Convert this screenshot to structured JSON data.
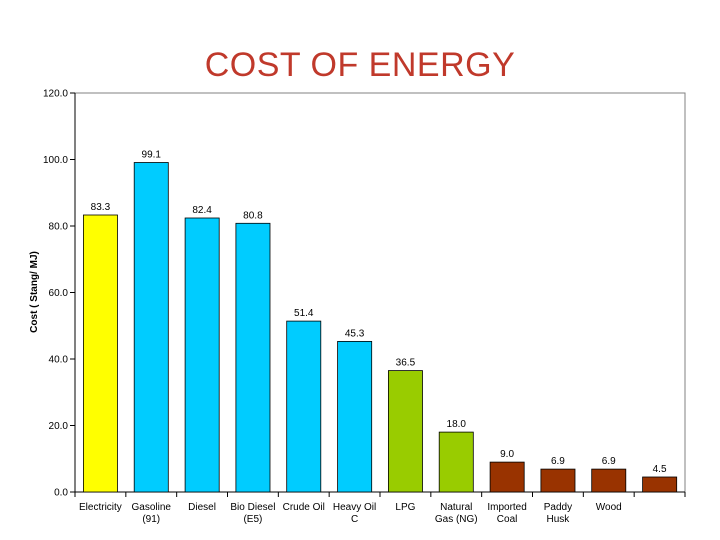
{
  "chart_data": {
    "type": "bar",
    "title": "COST OF ENERGY",
    "ylabel": "Cost ( Stang/ MJ)",
    "xlabel": "",
    "ylim": [
      0,
      120
    ],
    "yticks": [
      "0.0",
      "20.0",
      "40.0",
      "60.0",
      "80.0",
      "100.0",
      "120.0"
    ],
    "grid": false,
    "categories": [
      [
        "Electricity"
      ],
      [
        "Gasoline",
        "(91)"
      ],
      [
        "Diesel"
      ],
      [
        "Bio Diesel",
        "(E5)"
      ],
      [
        "Crude Oil"
      ],
      [
        "Heavy Oil",
        "C"
      ],
      [
        "LPG"
      ],
      [
        "Natural",
        "Gas (NG)"
      ],
      [
        "Imported",
        "Coal"
      ],
      [
        "Paddy",
        "Husk"
      ],
      [
        "Wood"
      ],
      [
        ""
      ]
    ],
    "values": [
      83.3,
      99.1,
      82.4,
      80.8,
      51.4,
      45.3,
      36.5,
      18.0,
      9.0,
      6.9,
      6.9,
      4.5
    ],
    "labels": [
      "83.3",
      "99.1",
      "82.4",
      "80.8",
      "51.4",
      "45.3",
      "36.5",
      "18.0",
      "9.0",
      "6.9",
      "6.9",
      "4.5"
    ],
    "colors": [
      "#ffff00",
      "#00ccff",
      "#00ccff",
      "#00ccff",
      "#00ccff",
      "#00ccff",
      "#99cc00",
      "#99cc00",
      "#993300",
      "#993300",
      "#993300",
      "#993300"
    ]
  }
}
